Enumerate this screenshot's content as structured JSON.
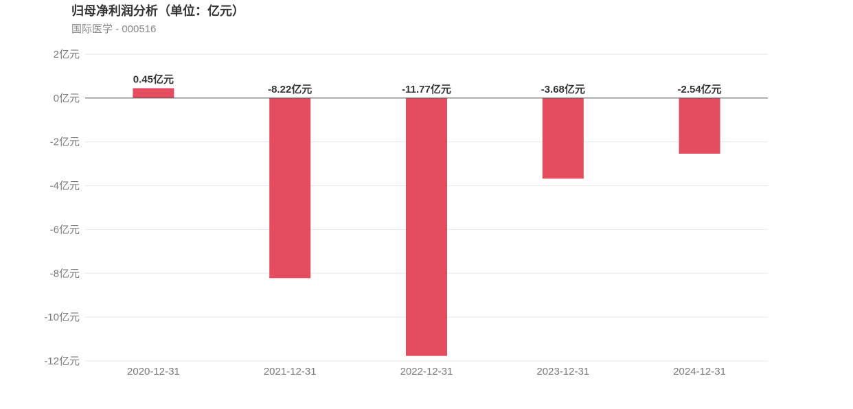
{
  "chart_data": {
    "type": "bar",
    "title": "归母净利润分析（单位：亿元）",
    "subtitle": "国际医学 - 000516",
    "categories": [
      "2020-12-31",
      "2021-12-31",
      "2022-12-31",
      "2023-12-31",
      "2024-12-31"
    ],
    "values": [
      0.45,
      -8.22,
      -11.77,
      -3.68,
      -2.54
    ],
    "data_labels": [
      "0.45亿元",
      "-8.22亿元",
      "-11.77亿元",
      "-3.68亿元",
      "-2.54亿元"
    ],
    "unit": "亿元",
    "ylim": [
      -12,
      2
    ],
    "yticks": [
      2,
      0,
      -2,
      -4,
      -6,
      -8,
      -10,
      -12
    ],
    "ytick_labels": [
      "2亿元",
      "0亿元",
      "-2亿元",
      "-4亿元",
      "-6亿元",
      "-8亿元",
      "-10亿元",
      "-12亿元"
    ],
    "grid": true,
    "legend": "none",
    "bar_color": "#e44c5f",
    "grid_color": "#e6e8ef",
    "zero_line_color": "#555555"
  }
}
